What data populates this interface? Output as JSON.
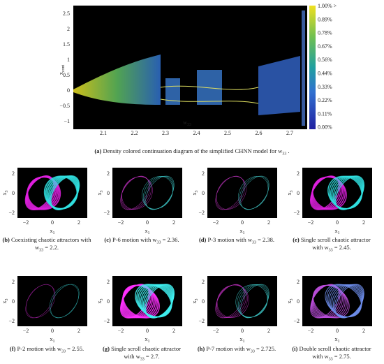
{
  "top_panel": {
    "y_label": "x",
    "y_sub": "cont",
    "x_label": "w",
    "x_sub": "33",
    "yticks": [
      "2.5",
      "2",
      "1.5",
      "1",
      "0.5",
      "0",
      "−0.5",
      "−1"
    ],
    "xticks": [
      "2.1",
      "2.2",
      "2.3",
      "2.4",
      "2.5",
      "2.6",
      "2.7"
    ],
    "colorbar_ticks": [
      "1.00% >",
      "0.89%",
      "0.78%",
      "0.67%",
      "0.56%",
      "0.44%",
      "0.33%",
      "0.22%",
      "0.11%",
      "0.00%"
    ],
    "caption": {
      "label": "(a)",
      "text": "Density colored continuation diagram of the simplified CHNN model for w",
      "sub": "33",
      "tail": "."
    }
  },
  "panel_axes": {
    "x_label": "x",
    "x_sub": "1",
    "y_label": "x",
    "y_sub": "3",
    "xticks": [
      "−2",
      "0",
      "2"
    ],
    "yticks": [
      "2",
      "0",
      "−2"
    ]
  },
  "panels": [
    {
      "label": "(b)",
      "text": "Coexisting chaotic attractors with w",
      "sub": "33",
      "tail": "= 2.2."
    },
    {
      "label": "(c)",
      "text": "P-6 motion with w",
      "sub": "33",
      "tail": "= 2.36."
    },
    {
      "label": "(d)",
      "text": "P-3 motion with w",
      "sub": "33",
      "tail": "= 2.38."
    },
    {
      "label": "(e)",
      "text": "Single scroll chaotic attractor with w",
      "sub": "33",
      "tail": "= 2.45."
    },
    {
      "label": "(f)",
      "text": "P-2 motion with w",
      "sub": "33",
      "tail": "= 2.55."
    },
    {
      "label": "(g)",
      "text": "Single scroll chaotic attractor with w",
      "sub": "33",
      "tail": "= 2.7."
    },
    {
      "label": "(h)",
      "text": "P-7 motion with w",
      "sub": "33",
      "tail": "= 2.725."
    },
    {
      "label": "(i)",
      "text": "Double scroll chaotic attractor with w",
      "sub": "33",
      "tail": "= 2.75."
    }
  ]
}
